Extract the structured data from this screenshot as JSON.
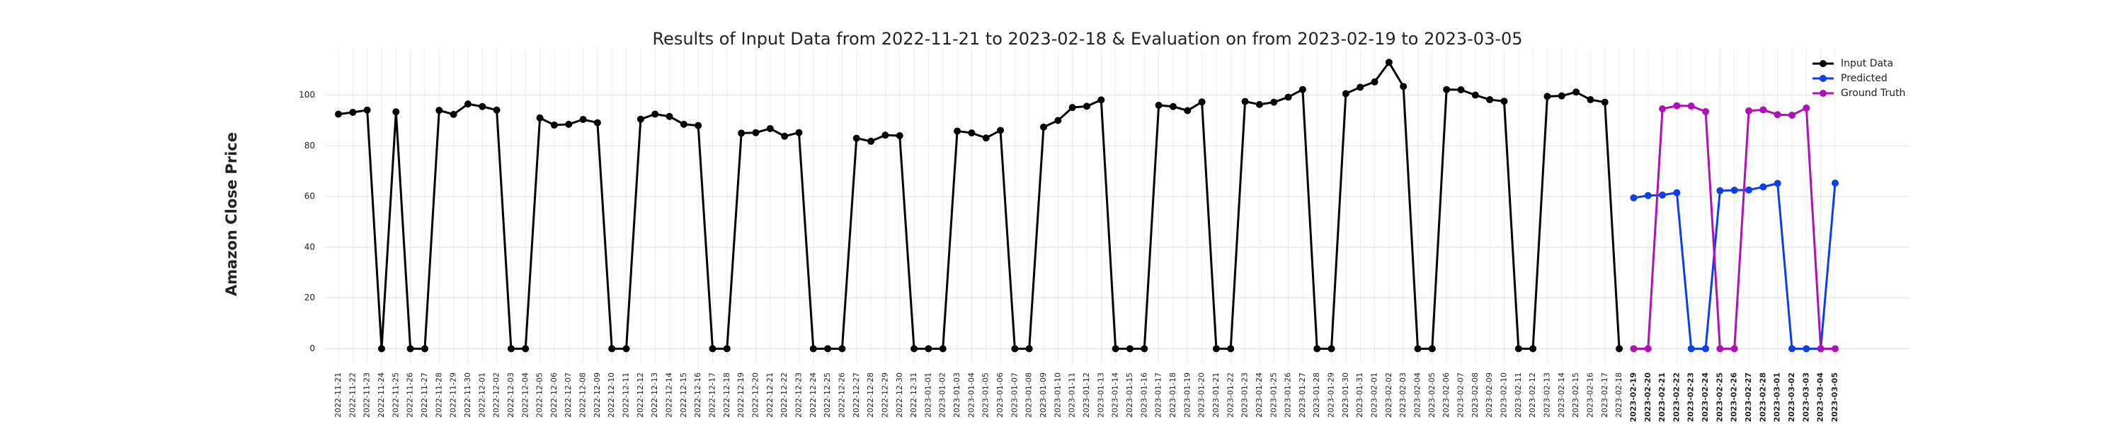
{
  "chart_data": {
    "type": "line",
    "title": "Results of Input Data from 2022-11-21 to 2023-02-18 & Evaluation on from 2023-02-19 to 2023-03-05",
    "ylabel": "Amazon Close Price",
    "x": [
      "2022-11-21",
      "2022-11-22",
      "2022-11-23",
      "2022-11-24",
      "2022-11-25",
      "2022-11-26",
      "2022-11-27",
      "2022-11-28",
      "2022-11-29",
      "2022-11-30",
      "2022-12-01",
      "2022-12-02",
      "2022-12-03",
      "2022-12-04",
      "2022-12-05",
      "2022-12-06",
      "2022-12-07",
      "2022-12-08",
      "2022-12-09",
      "2022-12-10",
      "2022-12-11",
      "2022-12-12",
      "2022-12-13",
      "2022-12-14",
      "2022-12-15",
      "2022-12-16",
      "2022-12-17",
      "2022-12-18",
      "2022-12-19",
      "2022-12-20",
      "2022-12-21",
      "2022-12-22",
      "2022-12-23",
      "2022-12-24",
      "2022-12-25",
      "2022-12-26",
      "2022-12-27",
      "2022-12-28",
      "2022-12-29",
      "2022-12-30",
      "2022-12-31",
      "2023-01-01",
      "2023-01-02",
      "2023-01-03",
      "2023-01-04",
      "2023-01-05",
      "2023-01-06",
      "2023-01-07",
      "2023-01-08",
      "2023-01-09",
      "2023-01-10",
      "2023-01-11",
      "2023-01-12",
      "2023-01-13",
      "2023-01-14",
      "2023-01-15",
      "2023-01-16",
      "2023-01-17",
      "2023-01-18",
      "2023-01-19",
      "2023-01-20",
      "2023-01-21",
      "2023-01-22",
      "2023-01-23",
      "2023-01-24",
      "2023-01-25",
      "2023-01-26",
      "2023-01-27",
      "2023-01-28",
      "2023-01-29",
      "2023-01-30",
      "2023-01-31",
      "2023-02-01",
      "2023-02-02",
      "2023-02-03",
      "2023-02-04",
      "2023-02-05",
      "2023-02-06",
      "2023-02-07",
      "2023-02-08",
      "2023-02-09",
      "2023-02-10",
      "2023-02-11",
      "2023-02-12",
      "2023-02-13",
      "2023-02-14",
      "2023-02-15",
      "2023-02-16",
      "2023-02-17",
      "2023-02-18",
      "2023-02-19",
      "2023-02-20",
      "2023-02-21",
      "2023-02-22",
      "2023-02-23",
      "2023-02-24",
      "2023-02-25",
      "2023-02-26",
      "2023-02-27",
      "2023-02-28",
      "2023-03-01",
      "2023-03-02",
      "2023-03-03",
      "2023-03-04",
      "2023-03-05"
    ],
    "series": [
      {
        "name": "Input Data",
        "color": "#000000",
        "values": [
          92.5,
          93.2,
          94.1,
          0,
          93.4,
          0,
          0,
          94.0,
          92.4,
          96.5,
          95.5,
          94.1,
          0,
          0,
          91.0,
          88.2,
          88.5,
          90.4,
          89.1,
          0,
          0,
          90.5,
          92.5,
          91.6,
          88.5,
          88.0,
          0,
          0,
          85.0,
          85.2,
          86.8,
          83.8,
          85.2,
          0,
          0,
          0,
          83.0,
          81.8,
          84.2,
          84.0,
          0,
          0,
          0,
          85.8,
          85.1,
          83.1,
          86.1,
          0,
          0,
          87.4,
          90.0,
          95.1,
          95.6,
          98.1,
          0,
          0,
          0,
          96.0,
          95.5,
          93.9,
          97.3,
          0,
          0,
          97.5,
          96.3,
          97.2,
          99.2,
          102.2,
          0,
          0,
          100.6,
          103.1,
          105.2,
          112.9,
          103.4,
          0,
          0,
          102.2,
          102.1,
          100.0,
          98.2,
          97.6,
          0,
          0,
          99.5,
          99.7,
          101.2,
          98.2,
          97.2,
          0,
          null,
          null,
          null,
          null,
          null,
          null,
          null,
          null,
          null,
          null,
          null,
          null,
          null,
          null,
          null
        ]
      },
      {
        "name": "Predicted",
        "color": "#0b3fe8",
        "values": [
          null,
          null,
          null,
          null,
          null,
          null,
          null,
          null,
          null,
          null,
          null,
          null,
          null,
          null,
          null,
          null,
          null,
          null,
          null,
          null,
          null,
          null,
          null,
          null,
          null,
          null,
          null,
          null,
          null,
          null,
          null,
          null,
          null,
          null,
          null,
          null,
          null,
          null,
          null,
          null,
          null,
          null,
          null,
          null,
          null,
          null,
          null,
          null,
          null,
          null,
          null,
          null,
          null,
          null,
          null,
          null,
          null,
          null,
          null,
          null,
          null,
          null,
          null,
          null,
          null,
          null,
          null,
          null,
          null,
          null,
          null,
          null,
          null,
          null,
          null,
          null,
          null,
          null,
          null,
          null,
          null,
          null,
          null,
          null,
          null,
          null,
          null,
          null,
          null,
          null,
          59.5,
          60.4,
          60.6,
          61.5,
          0,
          0,
          62.3,
          62.5,
          62.6,
          63.8,
          65.2,
          0,
          0,
          0,
          65.3
        ]
      },
      {
        "name": "Ground Truth",
        "color": "#b010b8",
        "values": [
          null,
          null,
          null,
          null,
          null,
          null,
          null,
          null,
          null,
          null,
          null,
          null,
          null,
          null,
          null,
          null,
          null,
          null,
          null,
          null,
          null,
          null,
          null,
          null,
          null,
          null,
          null,
          null,
          null,
          null,
          null,
          null,
          null,
          null,
          null,
          null,
          null,
          null,
          null,
          null,
          null,
          null,
          null,
          null,
          null,
          null,
          null,
          null,
          null,
          null,
          null,
          null,
          null,
          null,
          null,
          null,
          null,
          null,
          null,
          null,
          null,
          null,
          null,
          null,
          null,
          null,
          null,
          null,
          null,
          null,
          null,
          null,
          null,
          null,
          null,
          null,
          null,
          null,
          null,
          null,
          null,
          null,
          null,
          null,
          null,
          null,
          null,
          null,
          null,
          null,
          0,
          0,
          94.6,
          95.8,
          95.7,
          93.5,
          0,
          0,
          93.8,
          94.2,
          92.3,
          92.1,
          94.9,
          0,
          0
        ]
      }
    ],
    "ylim": [
      -6,
      118
    ],
    "yticks": [
      0,
      20,
      40,
      60,
      80,
      100
    ],
    "grid": true,
    "legend": "upper right"
  }
}
